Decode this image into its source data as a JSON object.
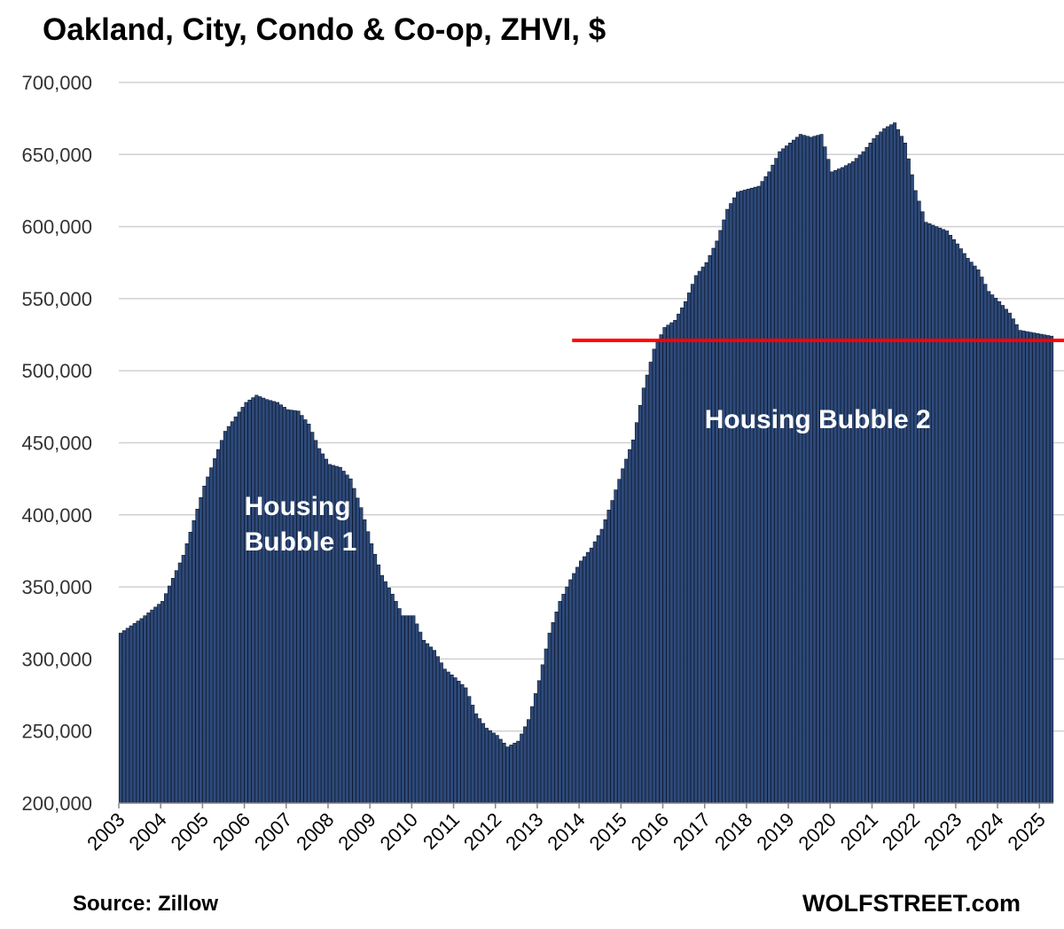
{
  "title": "Oakland, City, Condo & Co-op, ZHVI, $",
  "source": "Source: Zillow",
  "brand": "WOLFSTREET.com",
  "chart_data": {
    "type": "bar",
    "title": "Oakland, City, Condo & Co-op, ZHVI, $",
    "xlabel": "",
    "ylabel": "",
    "ylim": [
      200000,
      700000
    ],
    "grid": true,
    "legend": "none",
    "bar_color": "#2e4a7a",
    "bar_edge_color": "#0d1a33",
    "y_ticks": [
      200000,
      250000,
      300000,
      350000,
      400000,
      450000,
      500000,
      550000,
      600000,
      650000,
      700000
    ],
    "y_tick_labels": [
      "200,000",
      "250,000",
      "300,000",
      "350,000",
      "400,000",
      "450,000",
      "500,000",
      "550,000",
      "600,000",
      "650,000",
      "700,000"
    ],
    "x_tick_labels": [
      "2003",
      "2004",
      "2005",
      "2006",
      "2007",
      "2008",
      "2009",
      "2010",
      "2011",
      "2012",
      "2013",
      "2014",
      "2015",
      "2016",
      "2017",
      "2018",
      "2019",
      "2020",
      "2021",
      "2022",
      "2023",
      "2024",
      "2025"
    ],
    "frequency": "monthly",
    "start": "2003-01",
    "end": "2025-04",
    "anchors": [
      [
        "2003-01",
        318000
      ],
      [
        "2003-07",
        328000
      ],
      [
        "2004-01",
        340000
      ],
      [
        "2004-07",
        372000
      ],
      [
        "2005-01",
        420000
      ],
      [
        "2005-07",
        458000
      ],
      [
        "2006-01",
        478000
      ],
      [
        "2006-04",
        483000
      ],
      [
        "2006-07",
        480000
      ],
      [
        "2006-10",
        478000
      ],
      [
        "2007-01",
        473000
      ],
      [
        "2007-04",
        472000
      ],
      [
        "2007-07",
        463000
      ],
      [
        "2007-10",
        446000
      ],
      [
        "2008-01",
        435000
      ],
      [
        "2008-04",
        433000
      ],
      [
        "2008-07",
        425000
      ],
      [
        "2008-10",
        405000
      ],
      [
        "2009-01",
        380000
      ],
      [
        "2009-04",
        358000
      ],
      [
        "2009-07",
        345000
      ],
      [
        "2009-10",
        330000
      ],
      [
        "2010-01",
        330000
      ],
      [
        "2010-04",
        313000
      ],
      [
        "2010-07",
        306000
      ],
      [
        "2010-10",
        293000
      ],
      [
        "2011-01",
        287000
      ],
      [
        "2011-04",
        280000
      ],
      [
        "2011-07",
        262000
      ],
      [
        "2011-10",
        252000
      ],
      [
        "2012-01",
        247000
      ],
      [
        "2012-04",
        239000
      ],
      [
        "2012-07",
        243000
      ],
      [
        "2012-10",
        258000
      ],
      [
        "2013-01",
        285000
      ],
      [
        "2013-04",
        318000
      ],
      [
        "2013-07",
        340000
      ],
      [
        "2013-10",
        355000
      ],
      [
        "2014-01",
        368000
      ],
      [
        "2014-04",
        377000
      ],
      [
        "2014-07",
        390000
      ],
      [
        "2014-10",
        410000
      ],
      [
        "2015-01",
        432000
      ],
      [
        "2015-04",
        452000
      ],
      [
        "2015-07",
        488000
      ],
      [
        "2015-10",
        515000
      ],
      [
        "2016-01",
        530000
      ],
      [
        "2016-04",
        535000
      ],
      [
        "2016-07",
        548000
      ],
      [
        "2016-10",
        566000
      ],
      [
        "2017-01",
        575000
      ],
      [
        "2017-04",
        590000
      ],
      [
        "2017-07",
        612000
      ],
      [
        "2017-10",
        624000
      ],
      [
        "2018-01",
        626000
      ],
      [
        "2018-04",
        628000
      ],
      [
        "2018-07",
        638000
      ],
      [
        "2018-10",
        652000
      ],
      [
        "2019-01",
        658000
      ],
      [
        "2019-04",
        664000
      ],
      [
        "2019-07",
        662000
      ],
      [
        "2019-10",
        664000
      ],
      [
        "2020-01",
        638000
      ],
      [
        "2020-04",
        641000
      ],
      [
        "2020-07",
        645000
      ],
      [
        "2020-10",
        652000
      ],
      [
        "2021-01",
        661000
      ],
      [
        "2021-04",
        668000
      ],
      [
        "2021-07",
        672000
      ],
      [
        "2021-10",
        658000
      ],
      [
        "2022-01",
        625000
      ],
      [
        "2022-04",
        603000
      ],
      [
        "2022-07",
        600000
      ],
      [
        "2022-10",
        597000
      ],
      [
        "2023-01",
        588000
      ],
      [
        "2023-04",
        578000
      ],
      [
        "2023-07",
        570000
      ],
      [
        "2023-10",
        555000
      ],
      [
        "2024-01",
        548000
      ],
      [
        "2024-04",
        540000
      ],
      [
        "2024-07",
        528000
      ],
      [
        "2025-04",
        524000
      ]
    ],
    "reference_line": {
      "value": 521000,
      "start": "2013-11",
      "color": "#ff0000"
    },
    "annotations": [
      {
        "lines": [
          "Housing",
          "Bubble 1"
        ],
        "at": "2006-01",
        "value": 400000
      },
      {
        "lines": [
          "Housing Bubble 2"
        ],
        "at": "2017-01",
        "value": 460000
      }
    ]
  }
}
